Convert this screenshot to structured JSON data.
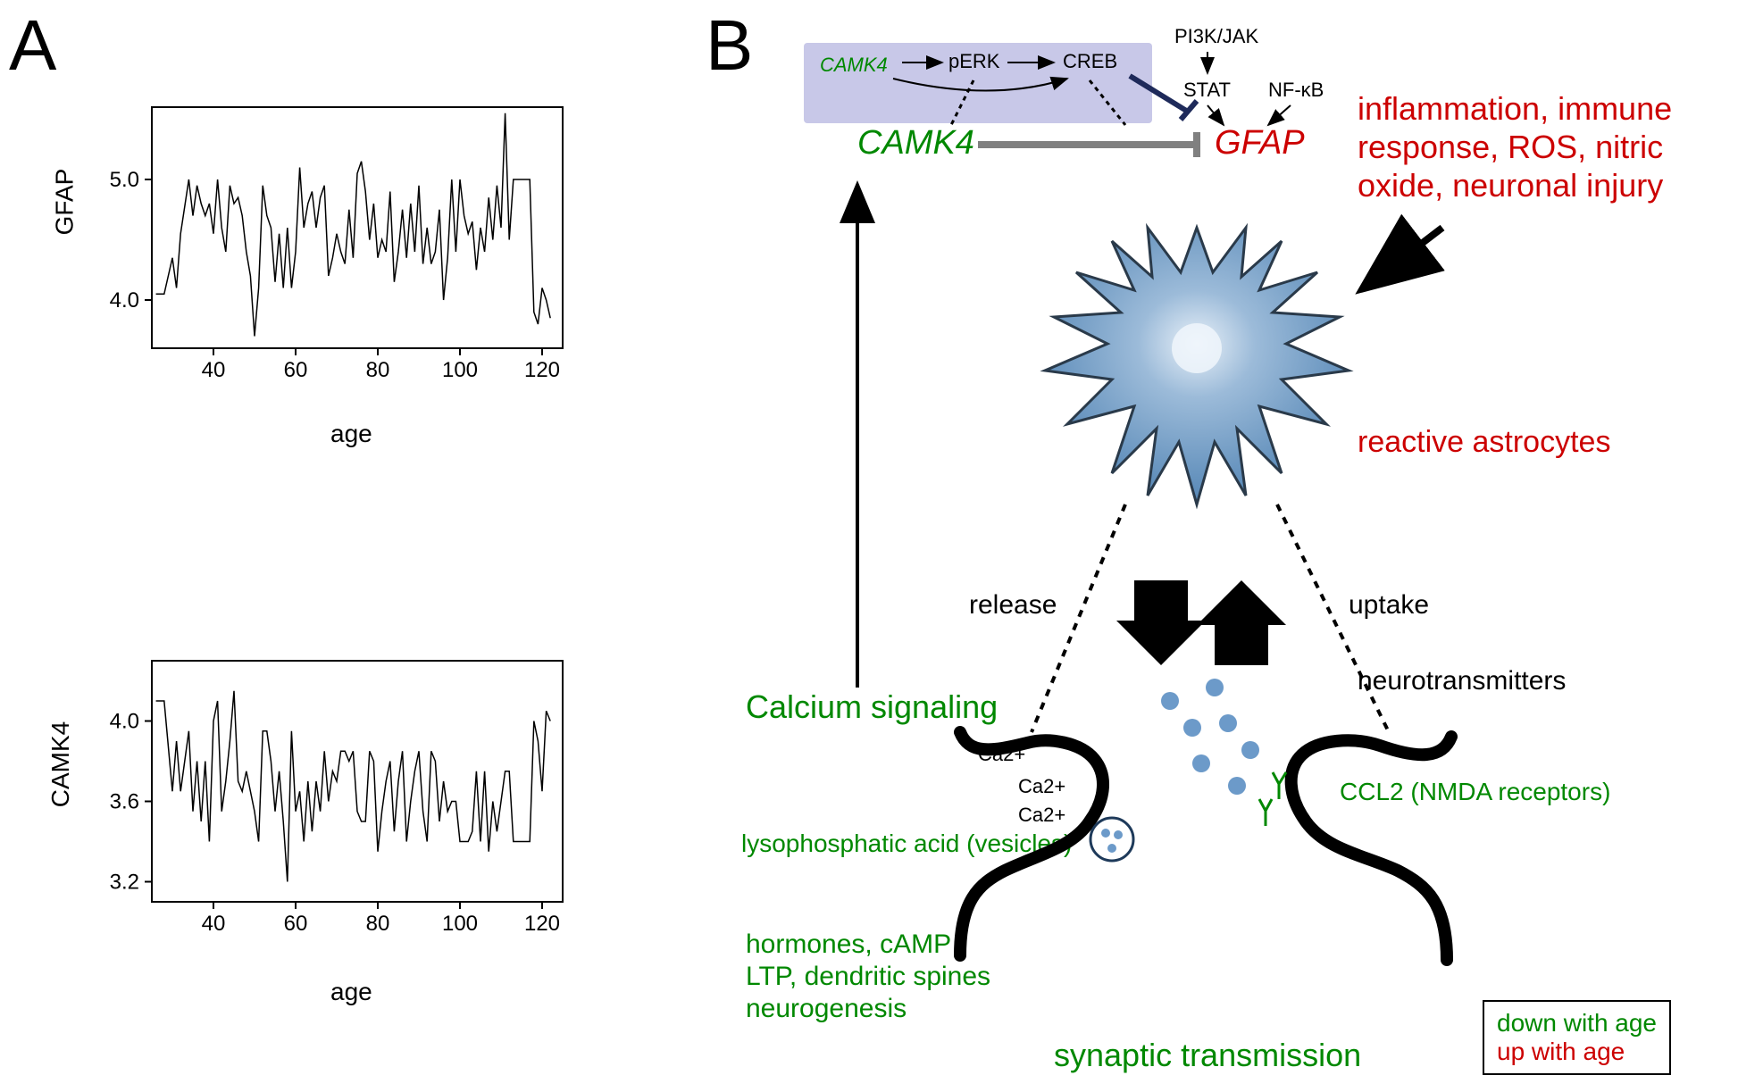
{
  "panelA": {
    "label": "A",
    "chart1": {
      "type": "line",
      "ylabel": "GFAP",
      "xlabel": "age",
      "xlim": [
        25,
        125
      ],
      "ylim": [
        3.6,
        5.6
      ],
      "xticks": [
        40,
        60,
        80,
        100,
        120
      ],
      "yticks": [
        4.0,
        5.0
      ],
      "line_color": "#000000",
      "line_width": 1.5,
      "background_color": "#ffffff",
      "border_color": "#000000",
      "x": [
        26,
        28,
        30,
        31,
        32,
        34,
        35,
        36,
        37,
        38,
        39,
        40,
        41,
        42,
        43,
        44,
        45,
        46,
        47,
        48,
        49,
        50,
        51,
        52,
        53,
        54,
        55,
        56,
        57,
        58,
        59,
        60,
        61,
        62,
        63,
        64,
        65,
        66,
        67,
        68,
        69,
        70,
        71,
        72,
        73,
        74,
        75,
        76,
        77,
        78,
        79,
        80,
        81,
        82,
        83,
        84,
        85,
        86,
        87,
        88,
        89,
        90,
        91,
        92,
        93,
        94,
        95,
        96,
        97,
        98,
        99,
        100,
        101,
        102,
        103,
        104,
        105,
        106,
        107,
        108,
        109,
        110,
        111,
        112,
        113,
        114,
        115,
        116,
        117,
        118,
        119,
        120,
        121,
        122
      ],
      "y": [
        4.05,
        4.05,
        4.35,
        4.1,
        4.55,
        5.0,
        4.7,
        4.95,
        4.8,
        4.7,
        4.8,
        4.55,
        5.0,
        4.6,
        4.4,
        4.95,
        4.8,
        4.85,
        4.7,
        4.4,
        4.2,
        3.7,
        4.1,
        4.95,
        4.7,
        4.6,
        4.15,
        4.55,
        4.1,
        4.6,
        4.1,
        4.4,
        5.1,
        4.6,
        4.8,
        4.9,
        4.6,
        4.85,
        4.95,
        4.2,
        4.35,
        4.55,
        4.4,
        4.3,
        4.75,
        4.35,
        5.05,
        5.15,
        4.9,
        4.5,
        4.8,
        4.35,
        4.5,
        4.4,
        4.9,
        4.15,
        4.4,
        4.75,
        4.35,
        4.8,
        4.4,
        4.95,
        4.3,
        4.6,
        4.3,
        4.4,
        4.75,
        4.0,
        4.35,
        5.0,
        4.4,
        5.0,
        4.7,
        4.55,
        4.65,
        4.25,
        4.6,
        4.4,
        4.85,
        4.5,
        4.95,
        4.6,
        5.55,
        4.5,
        5.0,
        5.0,
        5.0,
        5.0,
        5.0,
        3.9,
        3.8,
        4.1,
        4.0,
        3.85
      ]
    },
    "chart2": {
      "type": "line",
      "ylabel": "CAMK4",
      "xlabel": "age",
      "xlim": [
        25,
        125
      ],
      "ylim": [
        3.1,
        4.3
      ],
      "xticks": [
        40,
        60,
        80,
        100,
        120
      ],
      "yticks": [
        3.2,
        3.6,
        4.0
      ],
      "line_color": "#000000",
      "line_width": 1.5,
      "background_color": "#ffffff",
      "border_color": "#000000",
      "x": [
        26,
        28,
        30,
        31,
        32,
        34,
        35,
        36,
        37,
        38,
        39,
        40,
        41,
        42,
        43,
        44,
        45,
        46,
        47,
        48,
        49,
        50,
        51,
        52,
        53,
        54,
        55,
        56,
        57,
        58,
        59,
        60,
        61,
        62,
        63,
        64,
        65,
        66,
        67,
        68,
        69,
        70,
        71,
        72,
        73,
        74,
        75,
        76,
        77,
        78,
        79,
        80,
        81,
        82,
        83,
        84,
        85,
        86,
        87,
        88,
        89,
        90,
        91,
        92,
        93,
        94,
        95,
        96,
        97,
        98,
        99,
        100,
        101,
        102,
        103,
        104,
        105,
        106,
        107,
        108,
        109,
        110,
        111,
        112,
        113,
        114,
        115,
        116,
        117,
        118,
        119,
        120,
        121,
        122
      ],
      "y": [
        4.1,
        4.1,
        3.65,
        3.9,
        3.65,
        3.95,
        3.55,
        3.8,
        3.5,
        3.8,
        3.4,
        4.0,
        4.1,
        3.55,
        3.7,
        3.9,
        4.15,
        3.7,
        3.65,
        3.75,
        3.65,
        3.55,
        3.4,
        3.95,
        3.95,
        3.8,
        3.55,
        3.75,
        3.5,
        3.2,
        3.95,
        3.55,
        3.65,
        3.4,
        3.7,
        3.45,
        3.7,
        3.55,
        3.85,
        3.6,
        3.75,
        3.7,
        3.85,
        3.85,
        3.8,
        3.85,
        3.55,
        3.5,
        3.5,
        3.85,
        3.8,
        3.35,
        3.55,
        3.7,
        3.8,
        3.45,
        3.7,
        3.85,
        3.4,
        3.6,
        3.75,
        3.85,
        3.55,
        3.4,
        3.85,
        3.8,
        3.5,
        3.7,
        3.55,
        3.6,
        3.6,
        3.4,
        3.4,
        3.4,
        3.45,
        3.75,
        3.4,
        3.75,
        3.35,
        3.6,
        3.45,
        3.6,
        3.75,
        3.75,
        3.4,
        3.4,
        3.4,
        3.4,
        3.4,
        4.0,
        3.9,
        3.65,
        4.05,
        4.0
      ]
    }
  },
  "panelB": {
    "label": "B",
    "pathway": {
      "box_bg": "#c8c8e8",
      "camk4_small": "CAMK4",
      "perk": "pERK",
      "creb": "CREB",
      "pi3k_jak": "PI3K/JAK",
      "stat": "STAT",
      "nfkb": "NF-κB"
    },
    "camk4_big": "CAMK4",
    "gfap": "GFAP",
    "inflammation": "inflammation, immune\nresponse, ROS, nitric\noxide, neuronal injury",
    "reactive_astrocytes": "reactive astrocytes",
    "release": "release",
    "uptake": "uptake",
    "neurotransmitters": "neurotransmitters",
    "calcium_signaling": "Calcium signaling",
    "ca2plus": "Ca2+",
    "ccl2": "CCL2 (NMDA receptors)",
    "lysophosphatic": "lysophosphatic acid (vesicles)",
    "hormones": "hormones, cAMP\nLTP, dendritic spines\nneurogenesis",
    "synaptic": "synaptic transmission",
    "legend_down": "down with age",
    "legend_up": "up with age",
    "astrocyte_fill": "#6c9ac9",
    "astrocyte_stroke": "#2a3a4a",
    "vesicle_fill": "#6c9ac9",
    "synapse_stroke": "#000000"
  }
}
